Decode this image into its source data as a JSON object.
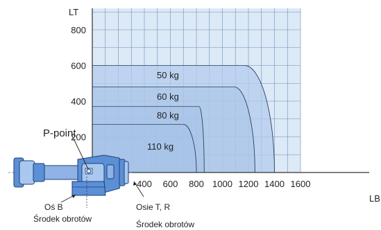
{
  "chart_data": {
    "type": "area",
    "title": "",
    "xlabel": "LB",
    "ylabel": "LT",
    "xlim": [
      0,
      1600
    ],
    "ylim": [
      0,
      920
    ],
    "x_ticks": [
      400,
      600,
      800,
      1000,
      1200,
      1400,
      1600
    ],
    "y_ticks": [
      200,
      400,
      600,
      800
    ],
    "grid": true,
    "series": [
      {
        "name": "50 kg",
        "lt": 600,
        "lb_outer": 1400,
        "lb_inner": 1170
      },
      {
        "name": "60 kg",
        "lt": 480,
        "lb_outer": 1250,
        "lb_inner": 1090
      },
      {
        "name": "80 kg",
        "lt": 370,
        "lb_outer": 860,
        "lb_inner": 820
      },
      {
        "name": "110 kg",
        "lt": 270,
        "lb_outer": 800,
        "lb_inner": 700
      }
    ]
  },
  "annotations": {
    "p_point": "P-point",
    "axis_b_line1": "Oś B",
    "axis_b_line2": "Środek obrotów",
    "axes_tr_line1": "Osie T, R",
    "axes_tr_line2": "Środek obrotów"
  },
  "colors": {
    "grid_fill": "#dce9f7",
    "grid_line": "#6f8db8",
    "envelope": "#b3cbec",
    "inner_region": "#a5c0e6",
    "robot_body": "#5b8fd6",
    "robot_light": "#a9c8ef",
    "axis": "#333333"
  }
}
